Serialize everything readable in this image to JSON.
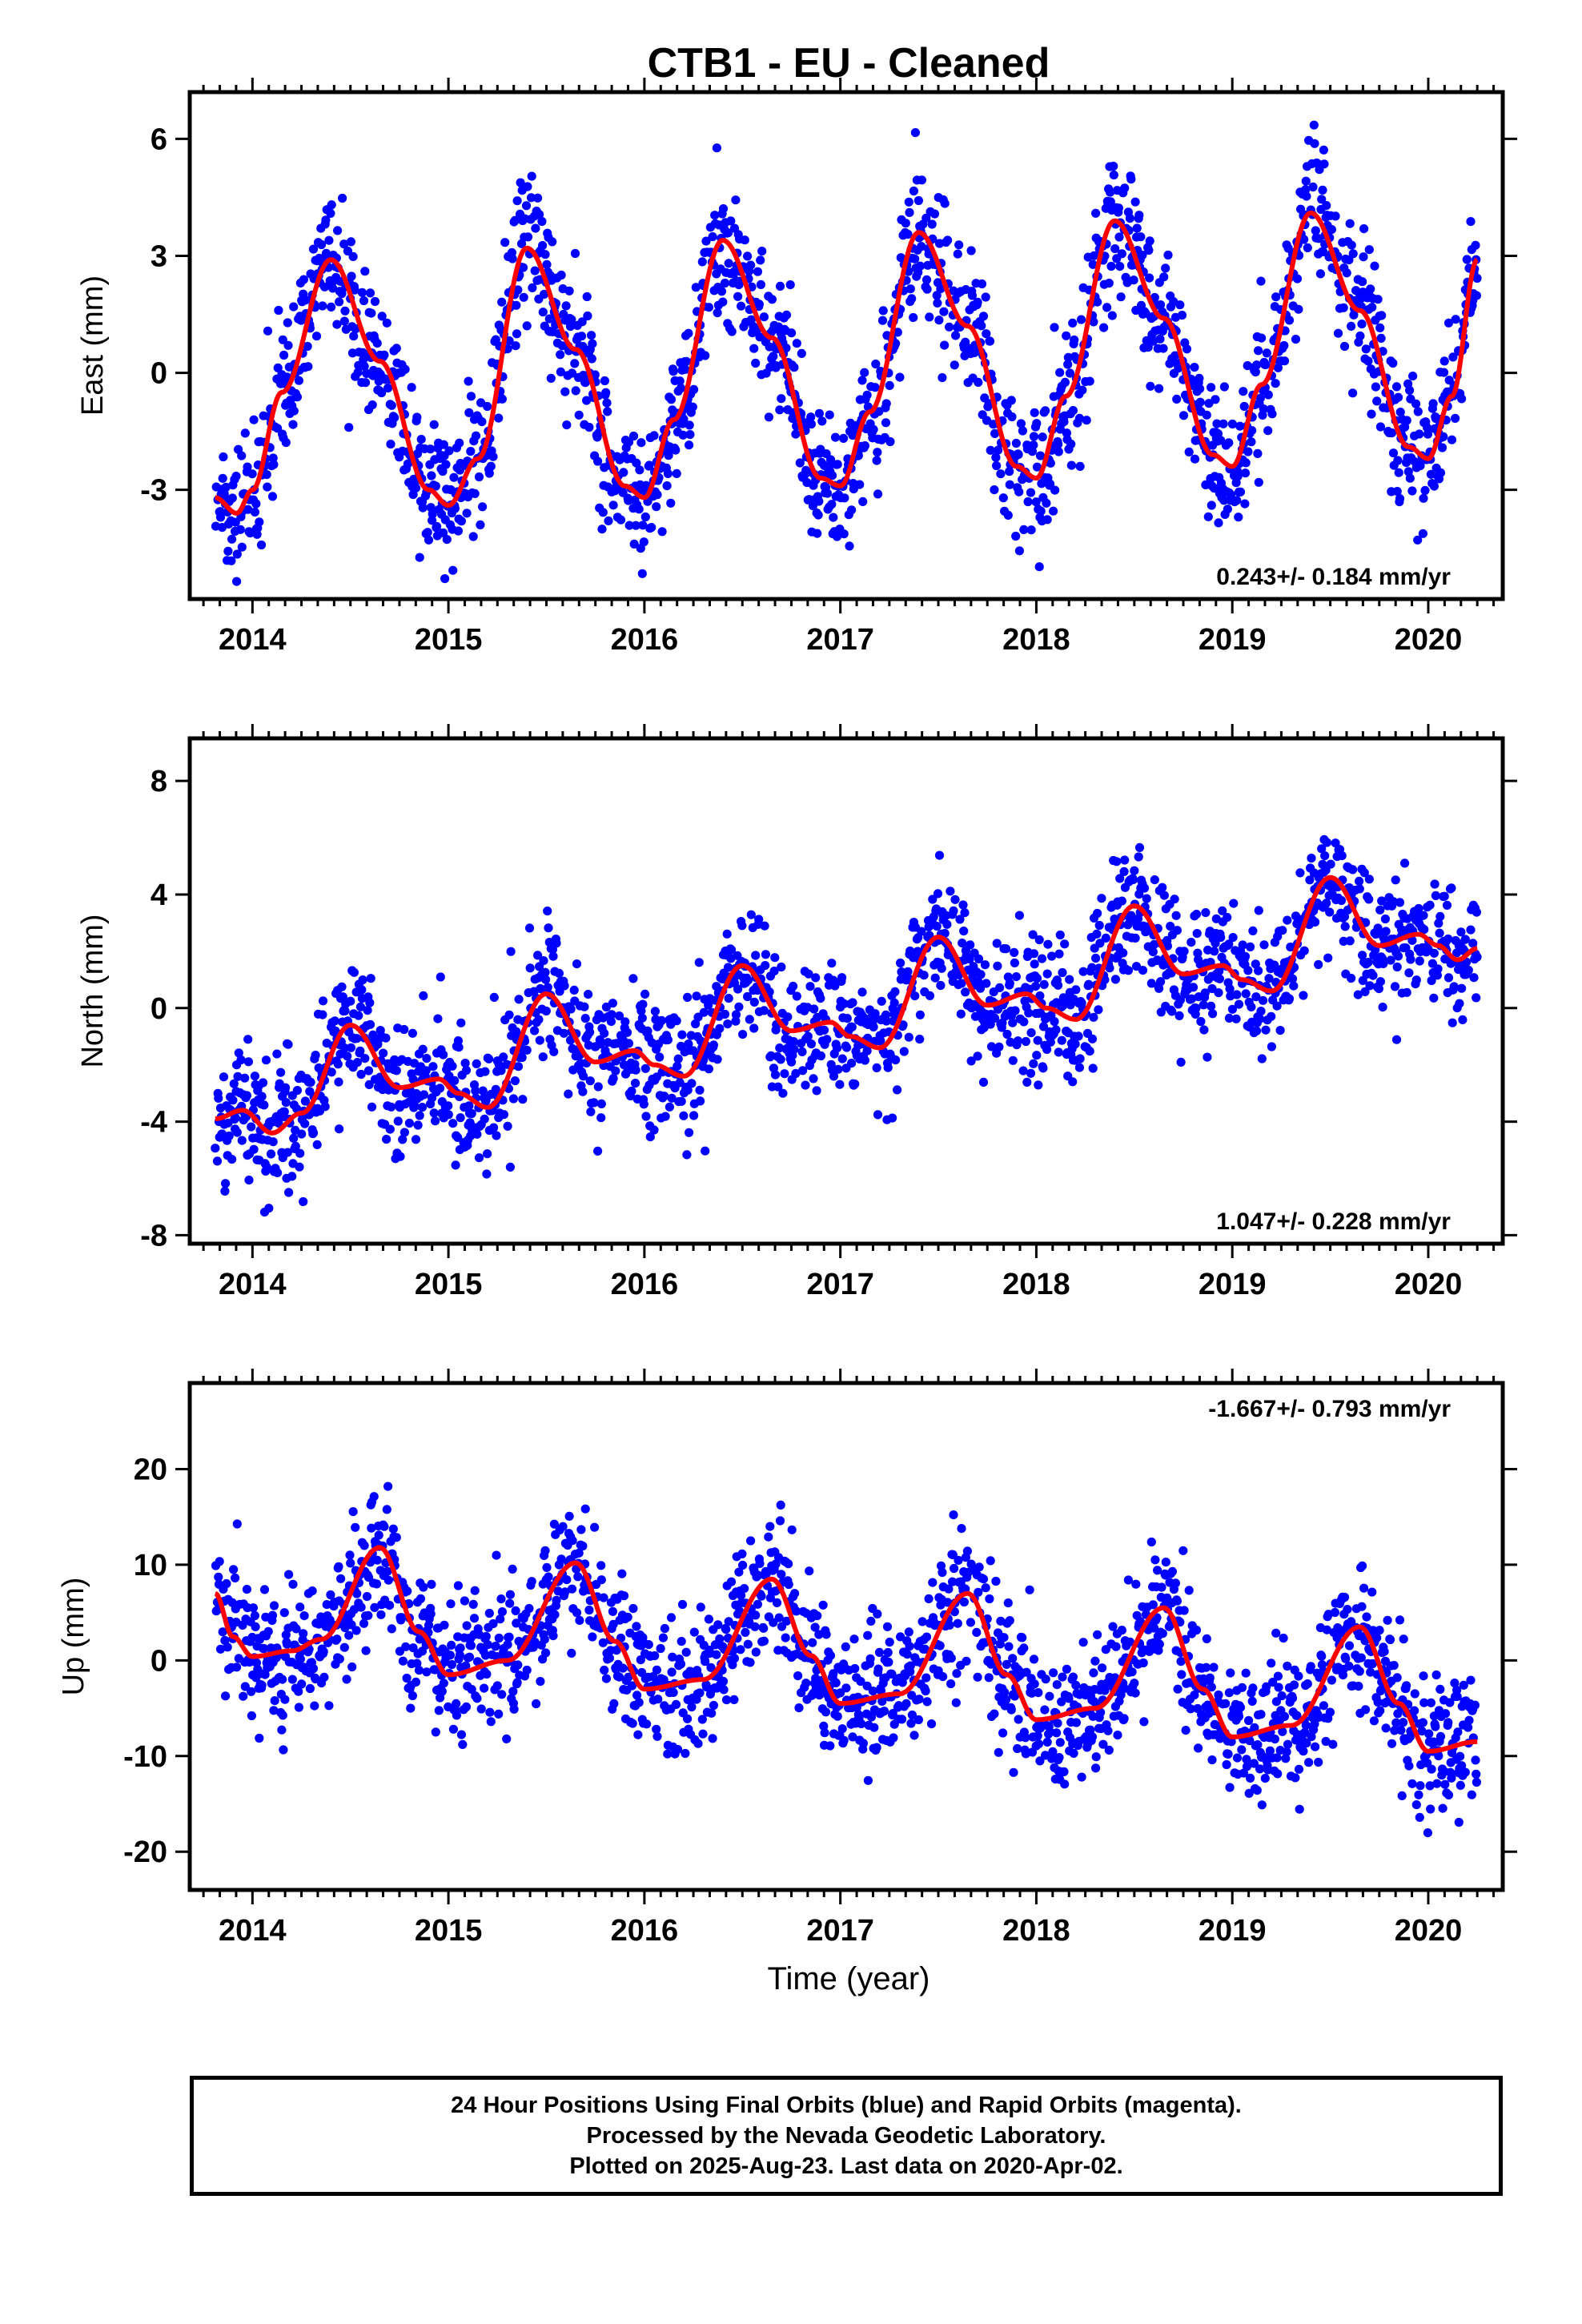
{
  "title": "CTB1  - EU - Cleaned",
  "xlabel": "Time (year)",
  "colors": {
    "points": "#0000ff",
    "fit": "#ff0000",
    "frame": "#000000"
  },
  "caption": [
    "24 Hour Positions Using Final Orbits (blue) and Rapid Orbits (magenta).",
    "Processed by the Nevada Geodetic Laboratory.",
    "Plotted on 2025-Aug-23. Last data on 2020-Apr-02."
  ],
  "chart_data": [
    {
      "type": "scatter",
      "name": "east",
      "ylabel": "East (mm)",
      "rate": "0.243+/- 0.184 mm/yr",
      "rate_position": "bottom-right",
      "xlim": [
        2013.68,
        2020.38
      ],
      "ylim": [
        -5.8,
        7.2
      ],
      "xticks": [
        2014,
        2015,
        2016,
        2017,
        2018,
        2019,
        2020
      ],
      "yticks": [
        -3,
        0,
        3,
        6
      ],
      "data_range": [
        2013.81,
        2020.25
      ],
      "series": [
        {
          "kind": "points",
          "color": "#0000ff",
          "scatter_sd_mm": 0.9
        },
        {
          "kind": "fit",
          "color": "#ff0000",
          "x": [
            2013.81,
            2013.92,
            2014.0,
            2014.15,
            2014.4,
            2014.65,
            2014.9,
            2015.0,
            2015.15,
            2015.4,
            2015.65,
            2015.9,
            2016.0,
            2016.15,
            2016.4,
            2016.65,
            2016.9,
            2017.0,
            2017.15,
            2017.4,
            2017.65,
            2017.9,
            2018.0,
            2018.15,
            2018.4,
            2018.65,
            2018.9,
            2019.0,
            2019.15,
            2019.4,
            2019.65,
            2019.9,
            2020.0,
            2020.12,
            2020.25
          ],
          "y": [
            -3.2,
            -3.6,
            -3.0,
            -0.5,
            2.9,
            0.3,
            -3.0,
            -3.4,
            -2.2,
            3.2,
            0.6,
            -2.9,
            -3.2,
            -1.2,
            3.4,
            0.9,
            -2.7,
            -2.9,
            -1.0,
            3.6,
            1.2,
            -2.4,
            -2.7,
            -0.6,
            3.9,
            1.4,
            -2.1,
            -2.4,
            -0.3,
            4.1,
            1.6,
            -1.9,
            -2.2,
            -0.6,
            2.9
          ]
        }
      ]
    },
    {
      "type": "scatter",
      "name": "north",
      "ylabel": "North (mm)",
      "rate": "1.047+/- 0.228 mm/yr",
      "rate_position": "bottom-right",
      "xlim": [
        2013.68,
        2020.38
      ],
      "ylim": [
        -8.3,
        9.5
      ],
      "xticks": [
        2014,
        2015,
        2016,
        2017,
        2018,
        2019,
        2020
      ],
      "yticks": [
        -8,
        -4,
        0,
        4,
        8
      ],
      "data_range": [
        2013.81,
        2020.25
      ],
      "series": [
        {
          "kind": "points",
          "color": "#0000ff",
          "scatter_sd_mm": 1.15
        },
        {
          "kind": "fit",
          "color": "#ff0000",
          "x": [
            2013.81,
            2013.95,
            2014.1,
            2014.25,
            2014.5,
            2014.75,
            2014.95,
            2015.05,
            2015.2,
            2015.5,
            2015.75,
            2015.95,
            2016.05,
            2016.2,
            2016.5,
            2016.75,
            2016.95,
            2017.05,
            2017.2,
            2017.5,
            2017.75,
            2017.95,
            2018.05,
            2018.2,
            2018.5,
            2018.75,
            2018.95,
            2019.05,
            2019.2,
            2019.5,
            2019.75,
            2019.95,
            2020.05,
            2020.15,
            2020.25
          ],
          "y": [
            -3.9,
            -3.6,
            -4.4,
            -3.7,
            -0.6,
            -2.8,
            -2.5,
            -3.0,
            -3.5,
            0.5,
            -1.9,
            -1.5,
            -2.0,
            -2.4,
            1.5,
            -0.8,
            -0.5,
            -1.0,
            -1.4,
            2.5,
            0.1,
            0.5,
            0.0,
            -0.4,
            3.6,
            1.2,
            1.5,
            1.0,
            0.6,
            4.6,
            2.2,
            2.6,
            2.2,
            1.7,
            2.1
          ]
        }
      ]
    },
    {
      "type": "scatter",
      "name": "up",
      "ylabel": "Up (mm)",
      "rate": "-1.667+/- 0.793 mm/yr",
      "rate_position": "top-right",
      "xlim": [
        2013.68,
        2020.38
      ],
      "ylim": [
        -24,
        29
      ],
      "xticks": [
        2014,
        2015,
        2016,
        2017,
        2018,
        2019,
        2020
      ],
      "yticks": [
        -20,
        -10,
        0,
        10,
        20
      ],
      "data_range": [
        2013.81,
        2020.25
      ],
      "series": [
        {
          "kind": "points",
          "color": "#0000ff",
          "scatter_sd_mm": 3.6
        },
        {
          "kind": "fit",
          "color": "#ff0000",
          "x": [
            2013.81,
            2013.9,
            2014.0,
            2014.2,
            2014.35,
            2014.65,
            2014.85,
            2015.0,
            2015.3,
            2015.65,
            2015.85,
            2016.0,
            2016.3,
            2016.65,
            2016.85,
            2017.0,
            2017.3,
            2017.65,
            2017.85,
            2018.0,
            2018.3,
            2018.65,
            2018.85,
            2019.0,
            2019.3,
            2019.65,
            2019.85,
            2020.0,
            2020.25
          ],
          "y": [
            7.0,
            2.5,
            0.4,
            1.0,
            2.2,
            11.8,
            3.0,
            -1.5,
            0.0,
            10.2,
            2.0,
            -3.0,
            -2.0,
            8.5,
            0.5,
            -4.5,
            -3.5,
            7.0,
            -1.5,
            -6.2,
            -5.0,
            5.5,
            -3.0,
            -8.0,
            -6.8,
            3.5,
            -4.5,
            -9.5,
            -8.5
          ]
        }
      ]
    }
  ]
}
